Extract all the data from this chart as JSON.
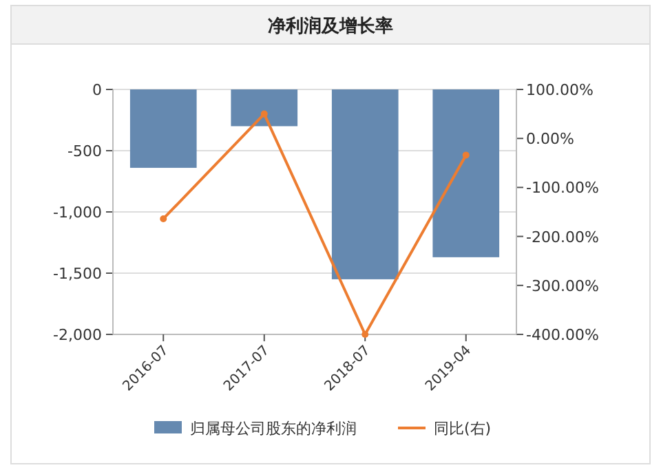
{
  "chart_data": {
    "type": "bar",
    "title": "净利润及增长率",
    "categories": [
      "2016-07",
      "2017-07",
      "2018-07",
      "2019-04"
    ],
    "series": [
      {
        "name": "归属母公司股东的净利润",
        "color": "#6589b0",
        "values": [
          -640,
          -300,
          -1550,
          -1370
        ]
      },
      {
        "name": "同比(右)",
        "type": "line",
        "axis": "y2",
        "color": "#ed7d31",
        "marker": "circle",
        "values": [
          -164,
          50,
          -400,
          -34
        ]
      }
    ],
    "ylim": [
      -2000,
      0
    ],
    "yticks": [
      {
        "value": 0,
        "label": "0"
      },
      {
        "value": -500,
        "label": "-500"
      },
      {
        "value": -1000,
        "label": "-1,000"
      },
      {
        "value": -1500,
        "label": "-1,500"
      },
      {
        "value": -2000,
        "label": "-2,000"
      }
    ],
    "y2lim": [
      -400,
      100
    ],
    "y2ticks": [
      {
        "value": 100,
        "label": "100.00%"
      },
      {
        "value": 0,
        "label": "0.00%"
      },
      {
        "value": -100,
        "label": "-100.00%"
      },
      {
        "value": -200,
        "label": "-200.00%"
      },
      {
        "value": -300,
        "label": "-300.00%"
      },
      {
        "value": -400,
        "label": "-400.00%"
      }
    ],
    "grid": "y",
    "legend": "bottom"
  }
}
